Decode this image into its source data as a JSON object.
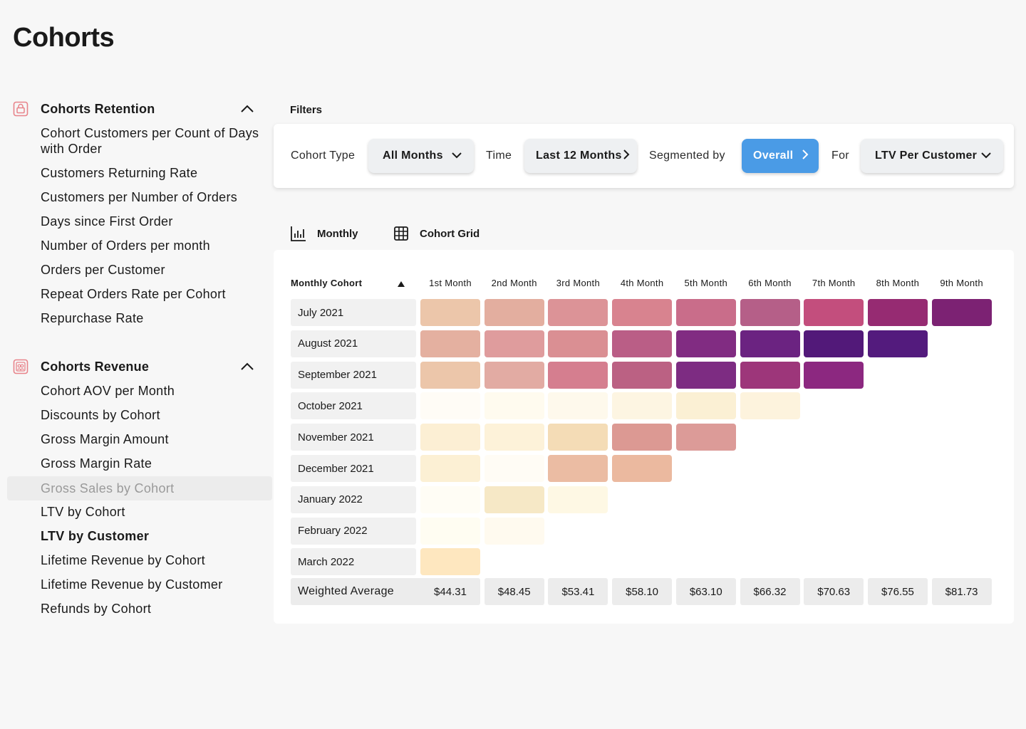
{
  "page": {
    "title": "Cohorts"
  },
  "sidebar": {
    "retention": {
      "title": "Cohorts Retention",
      "items": [
        "Cohort Customers per Count of Days with Order",
        "Customers Returning Rate",
        "Customers per Number of Orders",
        "Days since First Order",
        "Number of Orders per month",
        "Orders per Customer",
        "Repeat Orders Rate per Cohort",
        "Repurchase Rate"
      ]
    },
    "revenue": {
      "title": "Cohorts Revenue",
      "items": [
        "Cohort AOV per Month",
        "Discounts by Cohort",
        "Gross Margin Amount",
        "Gross Margin Rate",
        "Gross Sales by Cohort",
        "LTV by Cohort",
        "LTV by Customer",
        "Lifetime Revenue by Cohort",
        "Lifetime Revenue by Customer",
        "Refunds by Cohort"
      ],
      "hovered_item": "Gross Sales by Cohort",
      "selected_item": "LTV by Customer"
    }
  },
  "filters": {
    "label": "Filters",
    "cohort_type_label": "Cohort Type",
    "cohort_type_value": "All Months",
    "time_label": "Time",
    "time_value": "Last 12 Months",
    "segmented_label": "Segmented by",
    "segmented_value": "Overall",
    "for_label": "For",
    "for_value": "LTV Per Customer",
    "accent_color": "#4a9be6"
  },
  "views": {
    "monthly": "Monthly",
    "grid": "Cohort Grid"
  },
  "grid": {
    "cohort_header": "Monthly Cohort",
    "columns": [
      "1st Month",
      "2nd Month",
      "3rd Month",
      "4th Month",
      "5th Month",
      "6th Month",
      "7th Month",
      "8th Month",
      "9th Month"
    ],
    "rows": [
      {
        "label": "July 2021",
        "colors": [
          "#ecc6aa",
          "#e3ae9f",
          "#dc9397",
          "#d8838f",
          "#c96d8a",
          "#b55f88",
          "#c34e7d",
          "#962b72",
          "#7c2273"
        ]
      },
      {
        "label": "August 2021",
        "colors": [
          "#e4b0a0",
          "#df9c9d",
          "#da8f93",
          "#ba5e86",
          "#812c82",
          "#6b2381",
          "#521979",
          "#531b7d"
        ]
      },
      {
        "label": "September 2021",
        "colors": [
          "#ecc6aa",
          "#e2aba3",
          "#d57e8f",
          "#bb6183",
          "#7d2c82",
          "#9d367a",
          "#8c2880"
        ]
      },
      {
        "label": "October 2021",
        "colors": [
          "#fffcf6",
          "#fffbef",
          "#fef9ec",
          "#fdf5e2",
          "#fbf0d4",
          "#fdf3dd"
        ]
      },
      {
        "label": "November 2021",
        "colors": [
          "#fcefd4",
          "#fdf2d9",
          "#f4dcb6",
          "#dc9993",
          "#dc9b98"
        ]
      },
      {
        "label": "December 2021",
        "colors": [
          "#fcf0d4",
          "#fffcf5",
          "#ebbca3",
          "#ebb99f"
        ]
      },
      {
        "label": "January 2022",
        "colors": [
          "#fffdf5",
          "#f6e8c6",
          "#fef8e4"
        ]
      },
      {
        "label": "February 2022",
        "colors": [
          "#fffdf2",
          "#fffaef"
        ]
      },
      {
        "label": "March 2022",
        "colors": [
          "#fee7bf"
        ]
      }
    ],
    "weighted_average": {
      "label": "Weighted Average",
      "values": [
        "$44.31",
        "$48.45",
        "$53.41",
        "$58.10",
        "$63.10",
        "$66.32",
        "$70.63",
        "$76.55",
        "$81.73"
      ]
    }
  }
}
